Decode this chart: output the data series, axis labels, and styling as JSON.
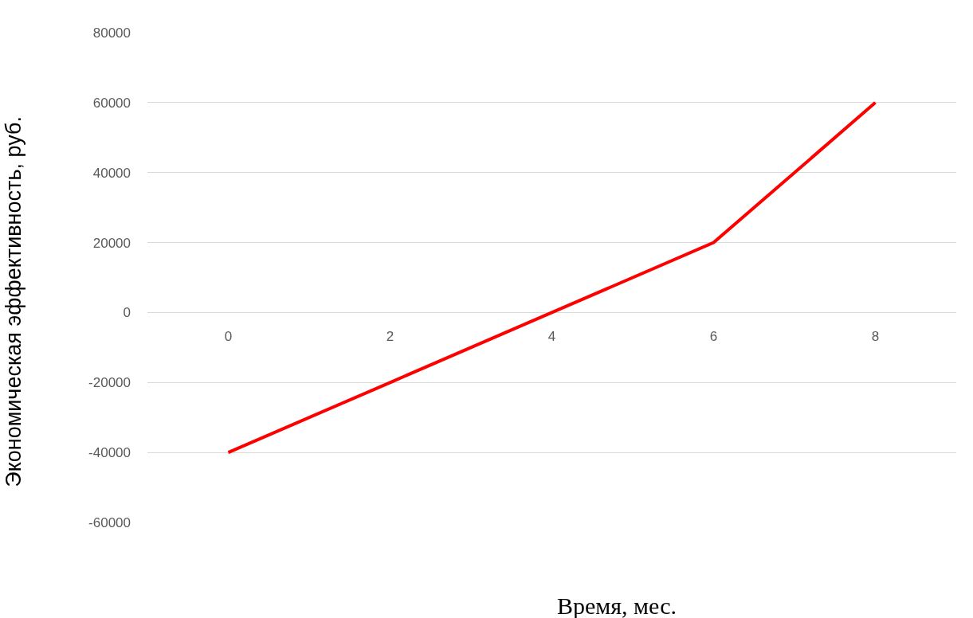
{
  "chart_data": {
    "type": "line",
    "xlabel": "Время, мес.",
    "ylabel": "Экономическая эффективность, руб.",
    "categories": [
      "0",
      "2",
      "4",
      "6",
      "8"
    ],
    "series": [
      {
        "color": "#ff0000",
        "values": [
          -40000,
          -20000,
          0,
          20000,
          60000
        ]
      }
    ],
    "ylim": [
      -60000,
      80000
    ],
    "yticks": [
      -60000,
      -40000,
      -20000,
      0,
      20000,
      40000,
      60000,
      80000
    ],
    "grid": "y",
    "marker": "none",
    "line_style": "solid"
  }
}
